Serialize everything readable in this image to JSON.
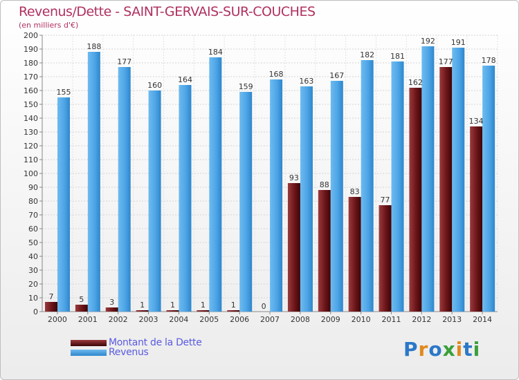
{
  "header": {
    "title": "Revenus/Dette - SAINT-GERVAIS-SUR-COUCHES",
    "subtitle": "(en milliers d'€)"
  },
  "chart_data": {
    "type": "bar",
    "categories": [
      "2000",
      "2001",
      "2002",
      "2003",
      "2004",
      "2005",
      "2006",
      "2007",
      "2008",
      "2009",
      "2010",
      "2011",
      "2012",
      "2013",
      "2014"
    ],
    "series": [
      {
        "name": "Montant de la Dette",
        "values": [
          7,
          5,
          3,
          1,
          1,
          1,
          1,
          0,
          93,
          88,
          83,
          77,
          162,
          177,
          134
        ],
        "color": "#6b1518"
      },
      {
        "name": "Revenus",
        "values": [
          155,
          188,
          177,
          160,
          164,
          184,
          159,
          168,
          163,
          167,
          182,
          181,
          192,
          191,
          178
        ],
        "color": "#4ea5e6"
      }
    ],
    "ylim": [
      0,
      200
    ],
    "yticks": [
      0,
      10,
      20,
      30,
      40,
      50,
      60,
      70,
      80,
      90,
      100,
      110,
      120,
      130,
      140,
      150,
      160,
      170,
      180,
      190,
      200
    ],
    "grid": true,
    "legend_placement": "bottom-left"
  },
  "legend": {
    "items": [
      {
        "label": "Montant de la Dette",
        "color": "#6b1518"
      },
      {
        "label": "Revenus",
        "color": "#4ea5e6"
      }
    ]
  },
  "logo": {
    "letters": [
      "P",
      "r",
      "o",
      "x",
      "i",
      "t",
      "i"
    ],
    "colors": [
      "#2a78c8",
      "#e08a1e",
      "#2a78c8",
      "#3aa03a",
      "#e08a1e",
      "#2a78c8",
      "#3aa03a"
    ]
  }
}
